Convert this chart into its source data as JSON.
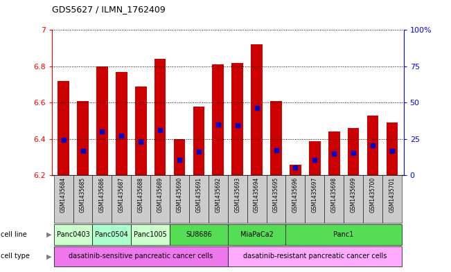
{
  "title": "GDS5627 / ILMN_1762409",
  "samples": [
    "GSM1435684",
    "GSM1435685",
    "GSM1435686",
    "GSM1435687",
    "GSM1435688",
    "GSM1435689",
    "GSM1435690",
    "GSM1435691",
    "GSM1435692",
    "GSM1435693",
    "GSM1435694",
    "GSM1435695",
    "GSM1435696",
    "GSM1435697",
    "GSM1435698",
    "GSM1435699",
    "GSM1435700",
    "GSM1435701"
  ],
  "transformed_count": [
    6.72,
    6.61,
    6.8,
    6.77,
    6.69,
    6.84,
    6.4,
    6.58,
    6.81,
    6.82,
    6.92,
    6.61,
    6.26,
    6.39,
    6.44,
    6.46,
    6.53,
    6.49
  ],
  "percentile_rank": [
    6.395,
    6.335,
    6.44,
    6.42,
    6.385,
    6.45,
    6.285,
    6.33,
    6.48,
    6.475,
    6.57,
    6.34,
    6.245,
    6.285,
    6.32,
    6.325,
    6.365,
    6.335
  ],
  "ymin": 6.2,
  "ymax": 7.0,
  "bar_color": "#CC0000",
  "marker_color": "#0000CC",
  "cell_line_groups": [
    {
      "name": "Panc0403",
      "start": 0,
      "end": 1,
      "color": "#ccffcc"
    },
    {
      "name": "Panc0504",
      "start": 2,
      "end": 3,
      "color": "#aaffcc"
    },
    {
      "name": "Panc1005",
      "start": 4,
      "end": 5,
      "color": "#ccffcc"
    },
    {
      "name": "SU8686",
      "start": 6,
      "end": 8,
      "color": "#55dd55"
    },
    {
      "name": "MiaPaCa2",
      "start": 9,
      "end": 11,
      "color": "#55dd55"
    },
    {
      "name": "Panc1",
      "start": 12,
      "end": 17,
      "color": "#55dd55"
    }
  ],
  "cell_type_groups": [
    {
      "name": "dasatinib-sensitive pancreatic cancer cells",
      "start": 0,
      "end": 8,
      "color": "#ee77ee"
    },
    {
      "name": "dasatinib-resistant pancreatic cancer cells",
      "start": 9,
      "end": 17,
      "color": "#ffaaff"
    }
  ],
  "xtick_bg_color": "#cccccc",
  "left_axis_color": "red",
  "right_axis_color": "blue"
}
